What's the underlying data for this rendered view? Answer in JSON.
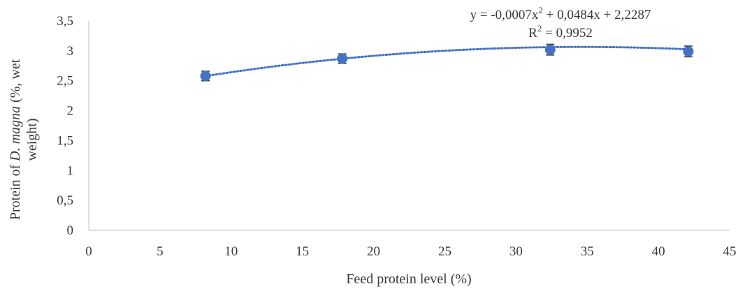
{
  "chart_data": {
    "type": "scatter",
    "xlabel": "Feed protein level (%)",
    "ylabel_lines": [
      "Protein of D. magna (%, wet",
      "weight)"
    ],
    "ylabel_prefix": "Protein of ",
    "ylabel_italic": "D. magna",
    "ylabel_suffix": " (%, wet",
    "ylabel_line2": "weight)",
    "xlim": [
      0,
      45
    ],
    "ylim": [
      0,
      3.5
    ],
    "x_ticks": [
      0,
      5,
      10,
      15,
      20,
      25,
      30,
      35,
      40,
      45
    ],
    "y_ticks": [
      0,
      0.5,
      1,
      1.5,
      2,
      2.5,
      3,
      3.5
    ],
    "x_tick_labels": [
      "0",
      "5",
      "10",
      "15",
      "20",
      "25",
      "30",
      "35",
      "40",
      "45"
    ],
    "y_tick_labels": [
      "0",
      "0,5",
      "1",
      "1,5",
      "2",
      "2,5",
      "3",
      "3,5"
    ],
    "grid": false,
    "series": [
      {
        "points": [
          {
            "x": 8.2,
            "y": 2.58,
            "err": 0.08
          },
          {
            "x": 17.8,
            "y": 2.87,
            "err": 0.08
          },
          {
            "x": 32.4,
            "y": 3.02,
            "err": 0.09
          },
          {
            "x": 42.1,
            "y": 2.99,
            "err": 0.09
          }
        ],
        "color": "#4472C4"
      }
    ],
    "trendline": {
      "type": "polynomial",
      "order": 2,
      "coefficients": {
        "a": -0.0007,
        "b": 0.0484,
        "c": 2.2287
      },
      "x_range": [
        8.2,
        42.1
      ],
      "style": "dotted",
      "color": "#4472C4",
      "equation_text": "y = -0,0007x",
      "equation_sup": "2",
      "equation_rest": " + 0,0484x + 2,2287",
      "r2_label": "R",
      "r2_sup": "2",
      "r2_rest": " = 0,9952"
    }
  }
}
